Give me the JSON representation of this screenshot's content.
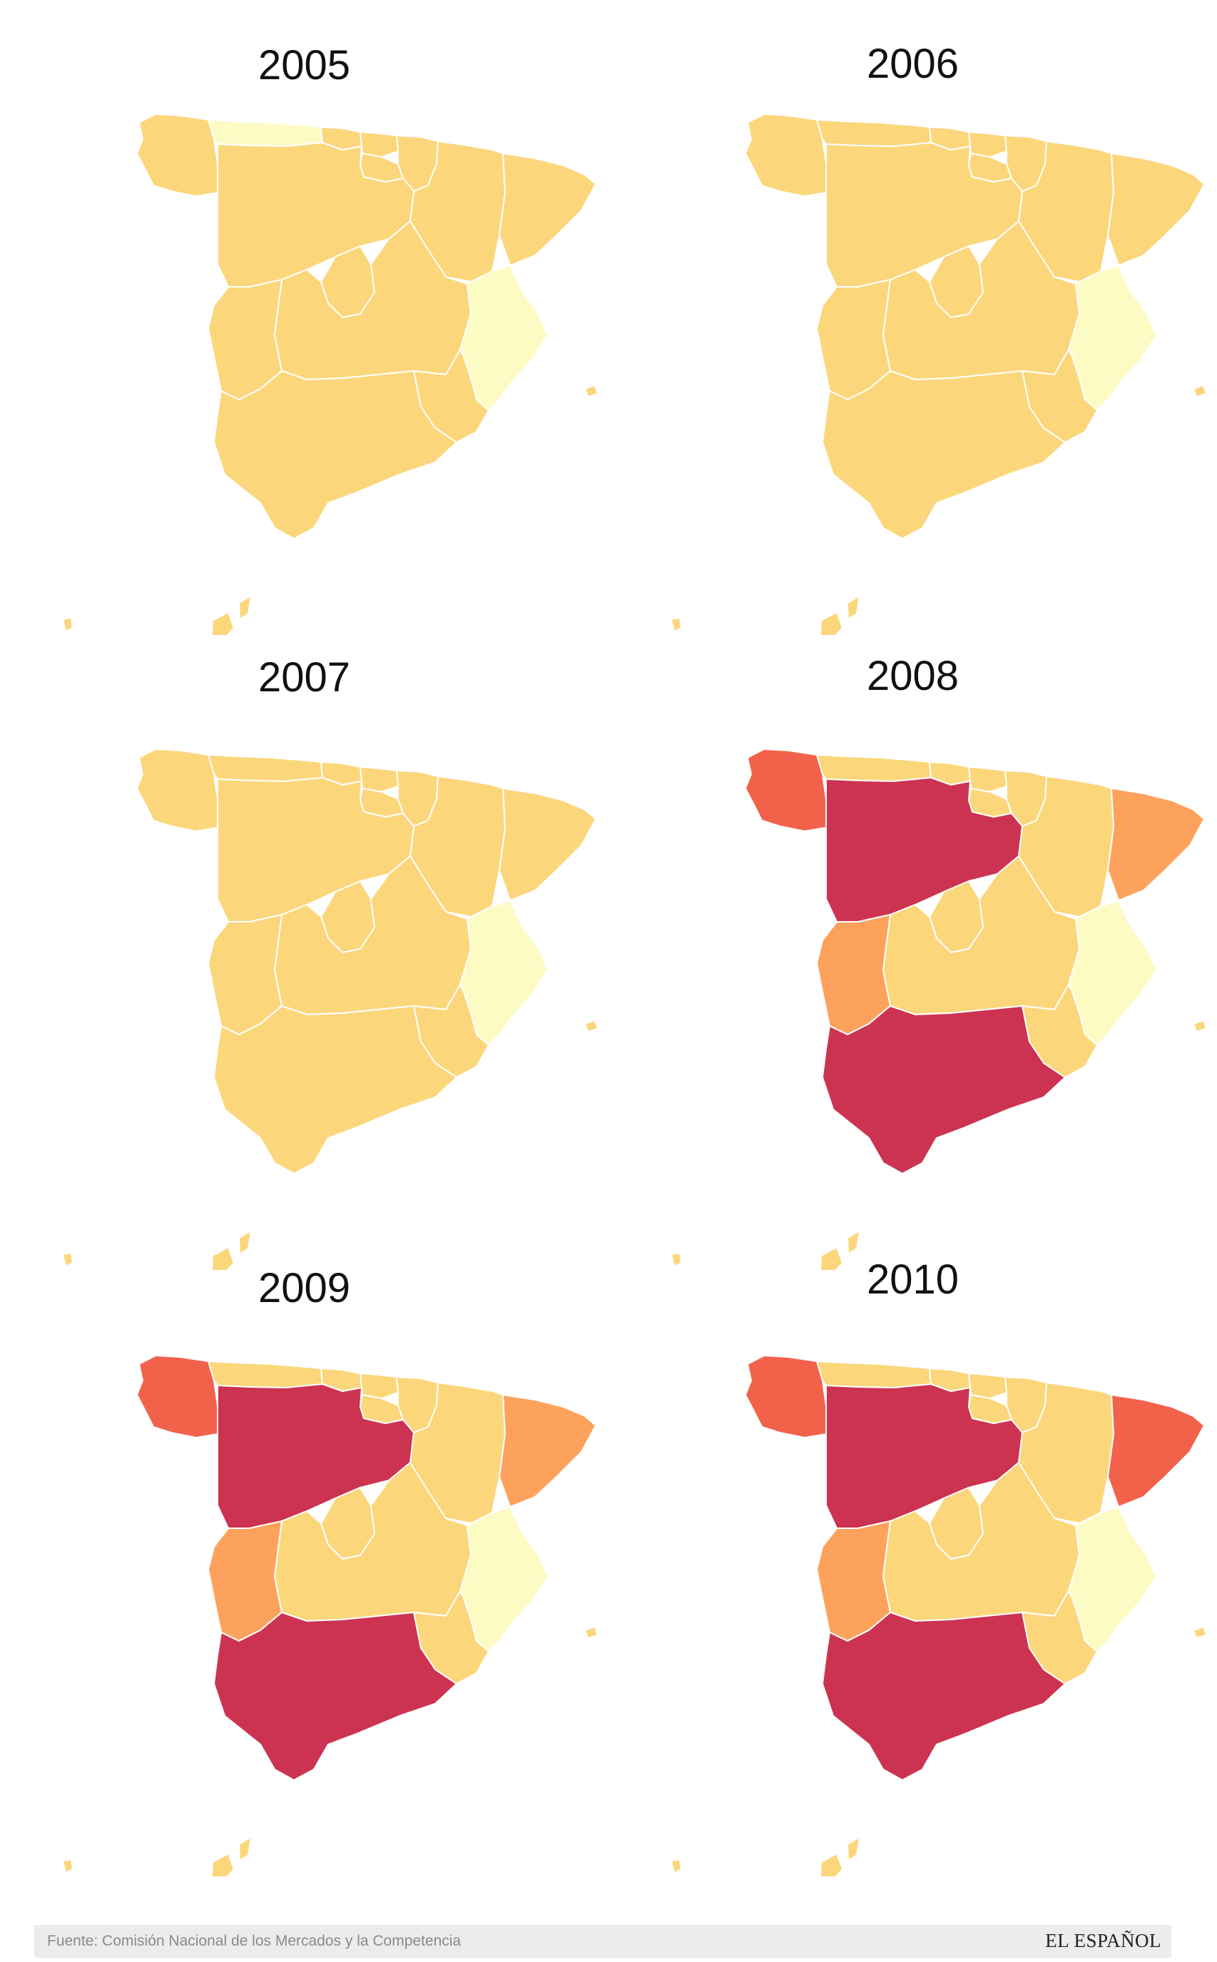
{
  "colors": {
    "lightest": "#fdfbc4",
    "light": "#fcd67b",
    "orange": "#fda25d",
    "red_orange": "#f2624a",
    "crimson": "#cc3350",
    "border": "#ffffff"
  },
  "panels": [
    {
      "year": "2005",
      "regions": {
        "galicia": "light",
        "asturias": "lightest",
        "cantabria": "light",
        "pais_vasco": "light",
        "navarra": "light",
        "la_rioja": "light",
        "aragon": "light",
        "cataluna": "light",
        "castilla_leon": "light",
        "madrid": "light",
        "castilla_la_mancha": "light",
        "extremadura": "light",
        "valencia": "lightest",
        "murcia": "light",
        "andalucia": "light",
        "baleares": "light",
        "canarias": "light"
      }
    },
    {
      "year": "2006",
      "regions": {
        "galicia": "light",
        "asturias": "light",
        "cantabria": "light",
        "pais_vasco": "light",
        "navarra": "light",
        "la_rioja": "light",
        "aragon": "light",
        "cataluna": "light",
        "castilla_leon": "light",
        "madrid": "light",
        "castilla_la_mancha": "light",
        "extremadura": "light",
        "valencia": "lightest",
        "murcia": "light",
        "andalucia": "light",
        "baleares": "light",
        "canarias": "light"
      }
    },
    {
      "year": "2007",
      "regions": {
        "galicia": "light",
        "asturias": "light",
        "cantabria": "light",
        "pais_vasco": "light",
        "navarra": "light",
        "la_rioja": "light",
        "aragon": "light",
        "cataluna": "light",
        "castilla_leon": "light",
        "madrid": "light",
        "castilla_la_mancha": "light",
        "extremadura": "light",
        "valencia": "lightest",
        "murcia": "light",
        "andalucia": "light",
        "baleares": "light",
        "canarias": "light"
      }
    },
    {
      "year": "2008",
      "regions": {
        "galicia": "red_orange",
        "asturias": "light",
        "cantabria": "light",
        "pais_vasco": "light",
        "navarra": "light",
        "la_rioja": "light",
        "aragon": "light",
        "cataluna": "orange",
        "castilla_leon": "crimson",
        "madrid": "light",
        "castilla_la_mancha": "light",
        "extremadura": "orange",
        "valencia": "lightest",
        "murcia": "light",
        "andalucia": "crimson",
        "baleares": "light",
        "canarias": "light"
      }
    },
    {
      "year": "2009",
      "regions": {
        "galicia": "red_orange",
        "asturias": "light",
        "cantabria": "light",
        "pais_vasco": "light",
        "navarra": "light",
        "la_rioja": "light",
        "aragon": "light",
        "cataluna": "orange",
        "castilla_leon": "crimson",
        "madrid": "light",
        "castilla_la_mancha": "light",
        "extremadura": "orange",
        "valencia": "lightest",
        "murcia": "light",
        "andalucia": "crimson",
        "baleares": "light",
        "canarias": "light"
      }
    },
    {
      "year": "2010",
      "regions": {
        "galicia": "red_orange",
        "asturias": "light",
        "cantabria": "light",
        "pais_vasco": "light",
        "navarra": "light",
        "la_rioja": "light",
        "aragon": "light",
        "cataluna": "red_orange",
        "castilla_leon": "crimson",
        "madrid": "light",
        "castilla_la_mancha": "light",
        "extremadura": "orange",
        "valencia": "lightest",
        "murcia": "light",
        "andalucia": "crimson",
        "baleares": "light",
        "canarias": "light"
      }
    }
  ],
  "footer": {
    "source": "Fuente: Comisión Nacional de los Mercados y la Competencia",
    "brand": "EL ESPAÑOL"
  }
}
